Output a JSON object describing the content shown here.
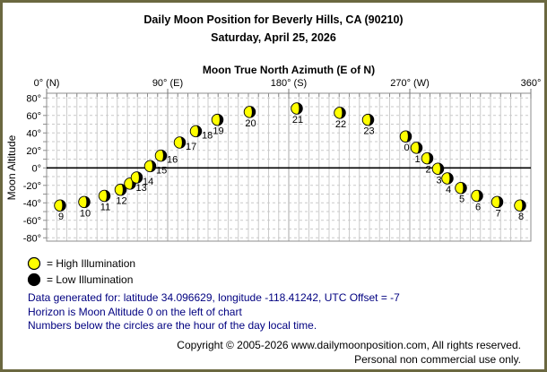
{
  "window": {
    "border_color": "#6b6840",
    "background": "#ffffff"
  },
  "header": {
    "title": "Daily Moon Position for Beverly Hills, CA (90210)",
    "date": "Saturday, April 25, 2026"
  },
  "chart_data": {
    "type": "scatter",
    "title": "Daily Moon Position for Beverly Hills, CA (90210)",
    "subtitle": "Saturday, April 25, 2026",
    "xlabel": "Moon True North Azimuth (E of N)",
    "ylabel": "Moon Altitude",
    "xlim": [
      0,
      360
    ],
    "ylim": [
      -80,
      80
    ],
    "grid": {
      "x_minor_step": 7.5,
      "y_step": 10,
      "enabled": true
    },
    "x_ticks": [
      {
        "value": 0,
        "label": "0° (N)"
      },
      {
        "value": 90,
        "label": "90° (E)"
      },
      {
        "value": 180,
        "label": "180° (S)"
      },
      {
        "value": 270,
        "label": "270° (W)"
      },
      {
        "value": 360,
        "label": "360°"
      }
    ],
    "y_ticks": [
      {
        "value": 80,
        "label": "80°"
      },
      {
        "value": 60,
        "label": "60°"
      },
      {
        "value": 40,
        "label": "40°"
      },
      {
        "value": 20,
        "label": "20°"
      },
      {
        "value": 0,
        "label": "0°"
      },
      {
        "value": -20,
        "label": "-20°"
      },
      {
        "value": -40,
        "label": "-40°"
      },
      {
        "value": -60,
        "label": "-60°"
      },
      {
        "value": -80,
        "label": "-80°"
      }
    ],
    "marker": {
      "bright_color": "#ffff00",
      "dark_color": "#000000",
      "outline": "#000000"
    },
    "series": [
      {
        "name": "moon-position-by-hour",
        "points": [
          {
            "hour": 0,
            "azimuth": 267,
            "altitude": 36
          },
          {
            "hour": 1,
            "azimuth": 275,
            "altitude": 23
          },
          {
            "hour": 2,
            "azimuth": 283,
            "altitude": 11
          },
          {
            "hour": 3,
            "azimuth": 291,
            "altitude": -1
          },
          {
            "hour": 4,
            "azimuth": 298,
            "altitude": -12
          },
          {
            "hour": 5,
            "azimuth": 308,
            "altitude": -23
          },
          {
            "hour": 6,
            "azimuth": 320,
            "altitude": -32
          },
          {
            "hour": 7,
            "azimuth": 335,
            "altitude": -39
          },
          {
            "hour": 8,
            "azimuth": 352,
            "altitude": -43
          },
          {
            "hour": 9,
            "azimuth": 10,
            "altitude": -43
          },
          {
            "hour": 10,
            "azimuth": 28,
            "altitude": -39
          },
          {
            "hour": 11,
            "azimuth": 43,
            "altitude": -32
          },
          {
            "hour": 12,
            "azimuth": 55,
            "altitude": -25
          },
          {
            "hour": 13,
            "azimuth": 62,
            "altitude": -18
          },
          {
            "hour": 14,
            "azimuth": 67,
            "altitude": -11
          },
          {
            "hour": 15,
            "azimuth": 77,
            "altitude": 2
          },
          {
            "hour": 16,
            "azimuth": 85,
            "altitude": 14
          },
          {
            "hour": 17,
            "azimuth": 99,
            "altitude": 29
          },
          {
            "hour": 18,
            "azimuth": 111,
            "altitude": 42
          },
          {
            "hour": 19,
            "azimuth": 127,
            "altitude": 55
          },
          {
            "hour": 20,
            "azimuth": 151,
            "altitude": 64
          },
          {
            "hour": 21,
            "azimuth": 186,
            "altitude": 68
          },
          {
            "hour": 22,
            "azimuth": 218,
            "altitude": 63
          },
          {
            "hour": 23,
            "azimuth": 239,
            "altitude": 55
          }
        ]
      }
    ],
    "annotations": {
      "horizon_value": 0,
      "hour_labels_note": "Numbers below the circles are the hour of the day local time."
    },
    "legend_position": "bottom-left"
  },
  "legend": {
    "high_label": "= High Illumination",
    "low_label": "= Low Illumination",
    "high_color": "#ffff00",
    "low_color": "#000000"
  },
  "notes": {
    "color": "#000080",
    "line1": "Data generated for: latitude 34.096629, longitude -118.41242, UTC Offset = -7",
    "line2": "Horizon is Moon Altitude 0 on the left of chart",
    "line3": "Numbers below the circles are the hour of the day local time."
  },
  "footer": {
    "line1": "Copyright © 2005-2026 www.dailymoonposition.com, All rights reserved.",
    "line2": "Personal non commercial use only."
  }
}
